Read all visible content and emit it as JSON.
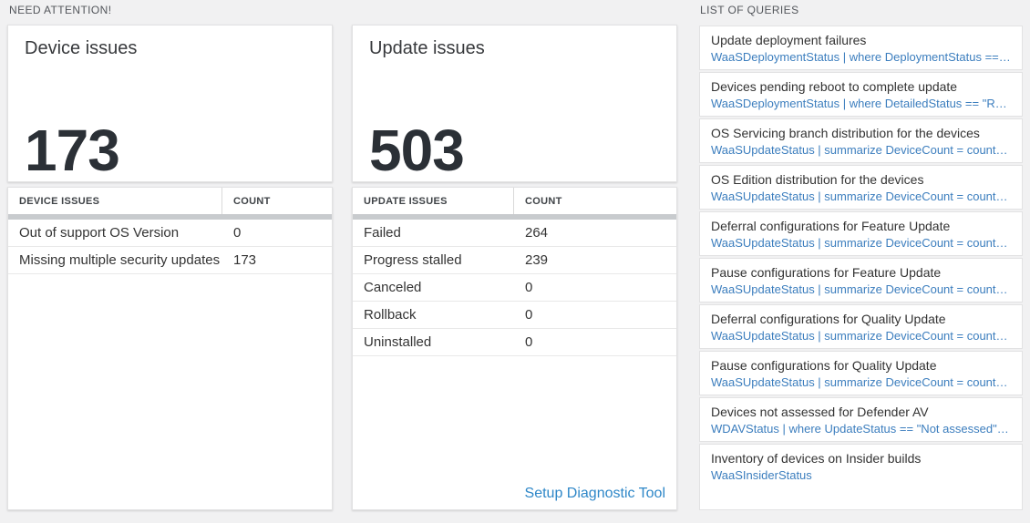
{
  "colors": {
    "link_blue": "#3c7ebe",
    "accent_blue": "#2e87c8",
    "number_dark": "#2b3036"
  },
  "need_attention": {
    "section_title": "NEED ATTENTION!",
    "device_card": {
      "title": "Device issues",
      "count": "173",
      "table": {
        "headers": [
          "DEVICE ISSUES",
          "COUNT"
        ],
        "rows": [
          {
            "label": "Out of support OS Version",
            "count": "0"
          },
          {
            "label": "Missing multiple security updates",
            "count": "173"
          }
        ]
      }
    },
    "update_card": {
      "title": "Update issues",
      "count": "503",
      "table": {
        "headers": [
          "UPDATE ISSUES",
          "COUNT"
        ],
        "rows": [
          {
            "label": "Failed",
            "count": "264"
          },
          {
            "label": "Progress stalled",
            "count": "239"
          },
          {
            "label": "Canceled",
            "count": "0"
          },
          {
            "label": "Rollback",
            "count": "0"
          },
          {
            "label": "Uninstalled",
            "count": "0"
          }
        ]
      },
      "link_label": "Setup Diagnostic Tool"
    }
  },
  "query_list": {
    "section_title": "LIST OF QUERIES",
    "items": [
      {
        "title": "Update deployment failures",
        "query": "WaaSDeploymentStatus | where DeploymentStatus == \"Failed\" |..."
      },
      {
        "title": "Devices pending reboot to complete update",
        "query": "WaaSDeploymentStatus | where DetailedStatus == \"Reboot pend..."
      },
      {
        "title": "OS Servicing branch distribution for the devices",
        "query": "WaaSUpdateStatus | summarize DeviceCount = count() by OSSer..."
      },
      {
        "title": "OS Edition distribution for the devices",
        "query": "WaaSUpdateStatus | summarize DeviceCount = count() by OSEdit..."
      },
      {
        "title": "Deferral configurations for Feature Update",
        "query": "WaaSUpdateStatus | summarize DeviceCount = count() by Featur..."
      },
      {
        "title": "Pause configurations for Feature Update",
        "query": "WaaSUpdateStatus | summarize DeviceCount = count() by Featur..."
      },
      {
        "title": "Deferral configurations for Quality Update",
        "query": "WaaSUpdateStatus | summarize DeviceCount = count() by Qualit..."
      },
      {
        "title": "Pause configurations for Quality Update",
        "query": "WaaSUpdateStatus | summarize DeviceCount = count() by Qualit..."
      },
      {
        "title": "Devices not assessed for Defender AV",
        "query": "WDAVStatus | where UpdateStatus == \"Not assessed\" | render ta..."
      },
      {
        "title": "Inventory of devices on Insider builds",
        "query": "WaaSInsiderStatus"
      }
    ]
  }
}
